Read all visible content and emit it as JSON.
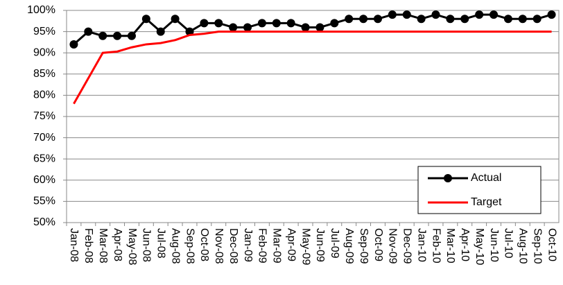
{
  "chart_data": {
    "type": "line",
    "categories": [
      "Jan-08",
      "Feb-08",
      "Mar-08",
      "Apr-08",
      "May-08",
      "Jun-08",
      "Jul-08",
      "Aug-08",
      "Sep-08",
      "Oct-08",
      "Nov-08",
      "Dec-08",
      "Jan-09",
      "Feb-09",
      "Mar-09",
      "Apr-09",
      "May-09",
      "Jun-09",
      "Jul-09",
      "Aug-09",
      "Sep-09",
      "Oct-09",
      "Nov-09",
      "Dec-09",
      "Jan-10",
      "Feb-10",
      "Mar-10",
      "Apr-10",
      "May-10",
      "Jun-10",
      "Jul-10",
      "Aug-10",
      "Sep-10",
      "Oct-10"
    ],
    "series": [
      {
        "name": "Actual",
        "color": "#000000",
        "marker": true,
        "values": [
          92,
          95,
          94,
          94,
          94,
          98,
          95,
          98,
          95,
          97,
          97,
          96,
          96,
          97,
          97,
          97,
          96,
          96,
          97,
          98,
          98,
          98,
          99,
          99,
          98,
          99,
          98,
          98,
          99,
          99,
          98,
          98,
          98,
          99
        ]
      },
      {
        "name": "Target",
        "color": "#ff0000",
        "marker": false,
        "values": [
          78,
          84,
          90,
          90.3,
          91.3,
          92,
          92.3,
          93,
          94.2,
          94.5,
          95,
          95,
          95,
          95,
          95,
          95,
          95,
          95,
          95,
          95,
          95,
          95,
          95,
          95,
          95,
          95,
          95,
          95,
          95,
          95,
          95,
          95,
          95,
          95
        ]
      }
    ],
    "ylim": [
      50,
      100
    ],
    "yticks": [
      {
        "value": 50,
        "label": "50%"
      },
      {
        "value": 55,
        "label": "55%"
      },
      {
        "value": 60,
        "label": "60%"
      },
      {
        "value": 65,
        "label": "65%"
      },
      {
        "value": 70,
        "label": "70%"
      },
      {
        "value": 75,
        "label": "75%"
      },
      {
        "value": 80,
        "label": "80%"
      },
      {
        "value": 85,
        "label": "85%"
      },
      {
        "value": 90,
        "label": "90%"
      },
      {
        "value": 95,
        "label": "95%"
      },
      {
        "value": 100,
        "label": "100%"
      }
    ],
    "grid": true,
    "legend": "bottom-right"
  }
}
